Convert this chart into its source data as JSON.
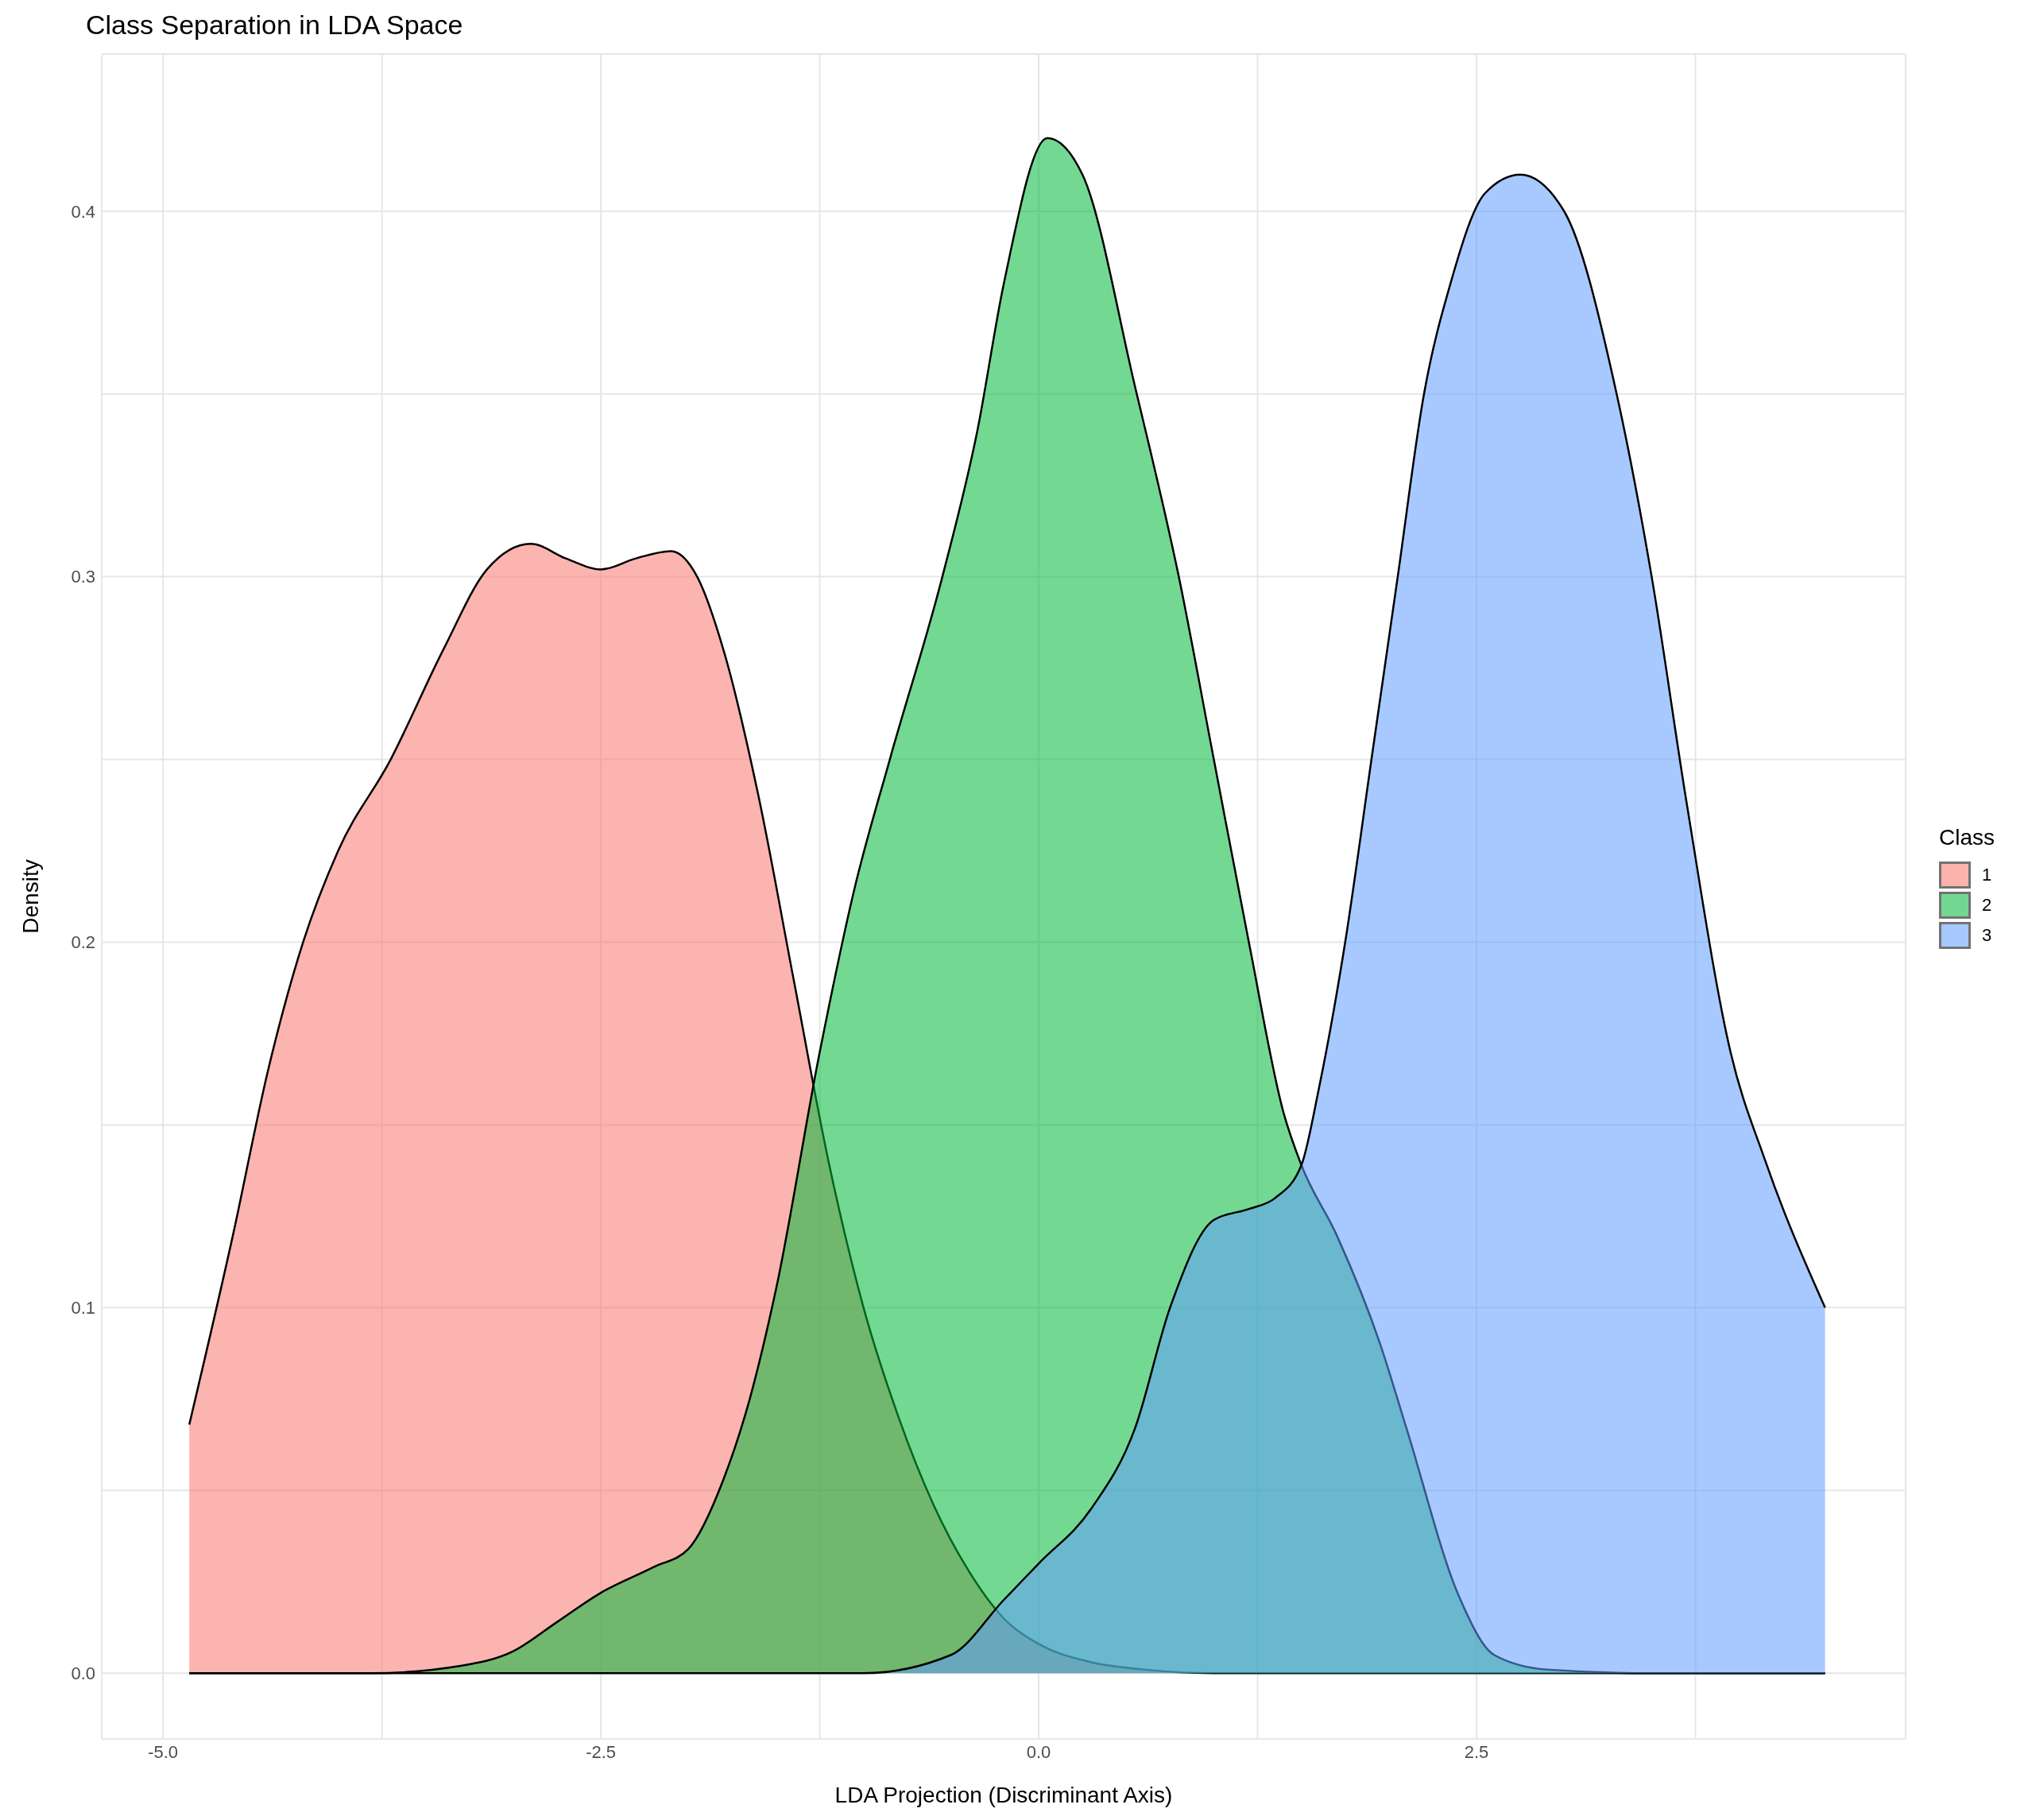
{
  "chart_data": {
    "type": "area",
    "title": "Class Separation in LDA Space",
    "xlabel": "LDA Projection (Discriminant Axis)",
    "ylabel": "Density",
    "legend_title": "Class",
    "legend": "right",
    "grid": true,
    "xlim": [
      -5.35,
      4.95
    ],
    "ylim": [
      -0.018,
      0.443
    ],
    "xticks": [
      {
        "value": -5,
        "label": "-5.0"
      },
      {
        "value": -3.75,
        "label": null
      },
      -2.5,
      {
        "value": -1.25,
        "label": null
      },
      {
        "value": 0,
        "label": "0.0"
      },
      {
        "value": 1.25,
        "label": null
      },
      2.5,
      {
        "value": 3.75,
        "label": null
      }
    ],
    "yticks": [
      {
        "value": 0,
        "label": "0.0"
      },
      {
        "value": 0.05,
        "label": null
      },
      0.1,
      {
        "value": 0.15,
        "label": null
      },
      0.2,
      {
        "value": 0.25,
        "label": null
      },
      0.3,
      {
        "value": 0.35,
        "label": null
      },
      0.4
    ],
    "series": [
      {
        "name": "1",
        "color": "#f8766d",
        "x": [
          -4.85,
          -4.6,
          -4.4,
          -4.2,
          -4.0,
          -3.7,
          -3.4,
          -3.15,
          -2.9,
          -2.7,
          -2.5,
          -2.3,
          -2.1,
          -1.95,
          -1.8,
          -1.6,
          -1.4,
          -1.2,
          -1.0,
          -0.8,
          -0.6,
          -0.4,
          -0.2,
          0.0,
          0.3,
          0.6,
          1.0,
          4.49
        ],
        "values": [
          0.068,
          0.12,
          0.165,
          0.2,
          0.225,
          0.25,
          0.28,
          0.302,
          0.309,
          0.305,
          0.302,
          0.305,
          0.307,
          0.3,
          0.28,
          0.24,
          0.19,
          0.14,
          0.1,
          0.07,
          0.046,
          0.028,
          0.015,
          0.008,
          0.003,
          0.001,
          0,
          0
        ]
      },
      {
        "name": "2",
        "color": "#00ba38",
        "x": [
          -4.85,
          -3.8,
          -3.3,
          -3.0,
          -2.75,
          -2.5,
          -2.2,
          -2.0,
          -1.8,
          -1.65,
          -1.5,
          -1.25,
          -1.05,
          -0.85,
          -0.55,
          -0.35,
          -0.2,
          0.05,
          0.25,
          0.55,
          0.8,
          1.0,
          1.2,
          1.4,
          1.5,
          1.7,
          1.95,
          2.1,
          2.4,
          2.6,
          2.9,
          3.5,
          4.49
        ],
        "values": [
          0,
          0,
          0.002,
          0.006,
          0.014,
          0.022,
          0.029,
          0.034,
          0.053,
          0.075,
          0.105,
          0.17,
          0.215,
          0.25,
          0.3,
          0.34,
          0.38,
          0.42,
          0.41,
          0.352,
          0.3,
          0.25,
          0.2,
          0.153,
          0.139,
          0.12,
          0.09,
          0.067,
          0.021,
          0.005,
          0.001,
          0,
          0
        ]
      },
      {
        "name": "3",
        "color": "#619cff",
        "x": [
          -4.85,
          -1.0,
          -0.5,
          -0.2,
          0.0,
          0.3,
          0.55,
          0.75,
          1.0,
          1.2,
          1.35,
          1.5,
          1.6,
          1.75,
          1.9,
          2.05,
          2.2,
          2.35,
          2.55,
          2.75,
          3.0,
          3.3,
          3.5,
          3.7,
          3.95,
          4.15,
          4.49
        ],
        "values": [
          0,
          0,
          0.005,
          0.02,
          0.03,
          0.045,
          0.067,
          0.1,
          0.124,
          0.127,
          0.13,
          0.139,
          0.16,
          0.2,
          0.25,
          0.3,
          0.35,
          0.38,
          0.405,
          0.41,
          0.4,
          0.35,
          0.3,
          0.238,
          0.17,
          0.14,
          0.1
        ]
      }
    ]
  }
}
